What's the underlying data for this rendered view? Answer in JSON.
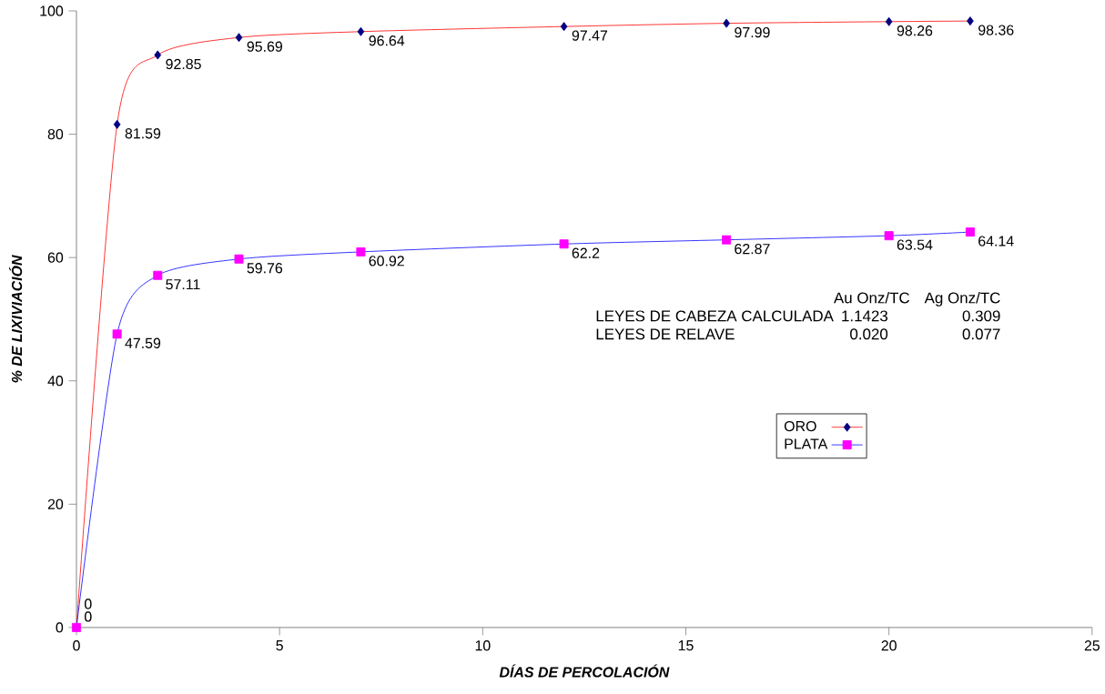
{
  "chart_data": {
    "type": "line",
    "xlabel": "DÍAS DE PERCOLACIÓN",
    "ylabel": "% DE LIXIVIACIÓN",
    "x": [
      0,
      1,
      2,
      4,
      7,
      12,
      16,
      20,
      22
    ],
    "series": [
      {
        "name": "ORO",
        "color": "#ff0000",
        "colors": [
          "#000080",
          "#000080",
          "#000080",
          "#000080",
          "#000080",
          "#000080",
          "#000080",
          "#000080",
          "#000080"
        ],
        "marker": "diamond",
        "values": [
          0,
          81.59,
          92.85,
          95.69,
          96.64,
          97.47,
          97.99,
          98.26,
          98.36
        ]
      },
      {
        "name": "PLATA",
        "color": "#0000ff",
        "colors": [
          "#ff00ff",
          "#ff00ff",
          "#ff00ff",
          "#ff00ff",
          "#ff00ff",
          "#ff00ff",
          "#ff00ff",
          "#ff00ff",
          "#ff00ff"
        ],
        "marker": "square",
        "values": [
          0,
          47.59,
          57.11,
          59.76,
          60.92,
          62.2,
          62.87,
          63.54,
          64.14
        ]
      }
    ],
    "xlim": [
      0,
      25
    ],
    "xticks": [
      0,
      5,
      10,
      15,
      20,
      25
    ],
    "ylim": [
      0,
      100
    ],
    "yticks": [
      0,
      20,
      40,
      60,
      80,
      100
    ],
    "data_labels": true,
    "grid": false,
    "legend": "right",
    "annotations": [
      "Au  Onz/TC",
      "Ag Onz/TC",
      "LEYES DE CABEZA CALCULADA",
      "1.1423",
      "0.309",
      "LEYES DE RELAVE",
      "0.020",
      "0.077"
    ]
  }
}
